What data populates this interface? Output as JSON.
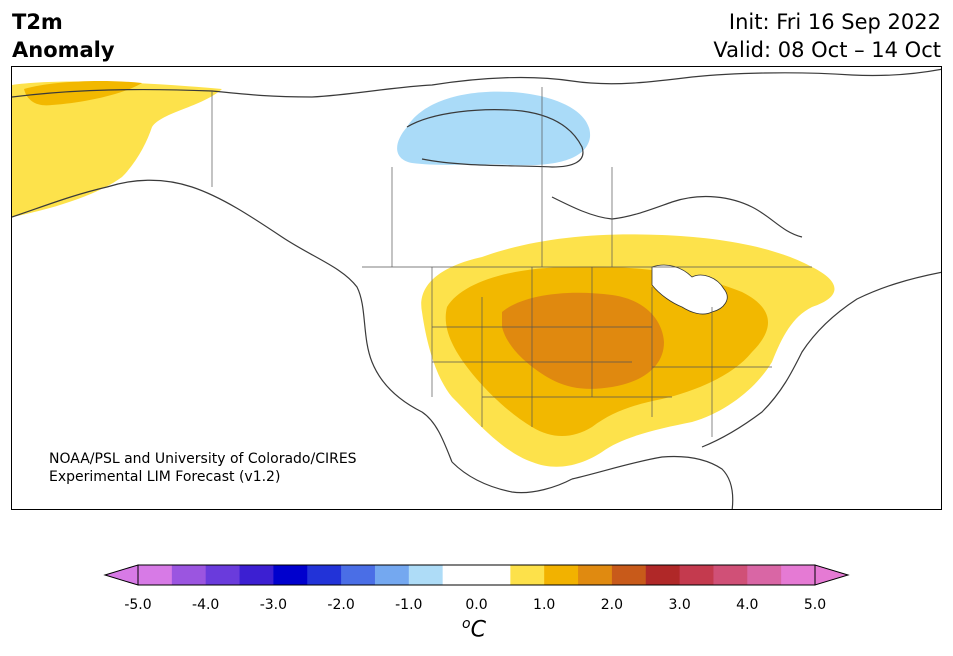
{
  "header": {
    "variable": "T2m",
    "subtitle": "Anomaly",
    "init": "Init: Fri 16 Sep 2022",
    "valid": "Valid: 08 Oct – 14 Oct"
  },
  "credit": {
    "line1": "NOAA/PSL and University of Colorado/CIRES",
    "line2": "Experimental LIM Forecast (v1.2)"
  },
  "colorbar": {
    "unit": "oC",
    "ticks": [
      "-5.0",
      "-4.0",
      "-3.0",
      "-2.0",
      "-1.0",
      "0.0",
      "1.0",
      "2.0",
      "3.0",
      "4.0",
      "5.0"
    ],
    "colors": [
      "#d77ae6",
      "#9b55e0",
      "#6a3bdc",
      "#3c1fd2",
      "#0000cd",
      "#2233d8",
      "#4a6ee6",
      "#74a8f0",
      "#aedcf7",
      "#ffffff",
      "#ffffff",
      "#fde14a",
      "#f2b200",
      "#e08a10",
      "#c85a1a",
      "#b02828",
      "#c43a4e",
      "#d05077",
      "#d966a5",
      "#e57ad4"
    ],
    "under_color": "#d77ae6",
    "over_color": "#e57ad4"
  },
  "map": {
    "region": "North America",
    "anomaly_colors": {
      "cold_light": "#aadbf8",
      "warm_light": "#fde24b",
      "warm_mid": "#f2b800",
      "warm_strong": "#e0890f",
      "neutral": "#ffffff"
    }
  }
}
